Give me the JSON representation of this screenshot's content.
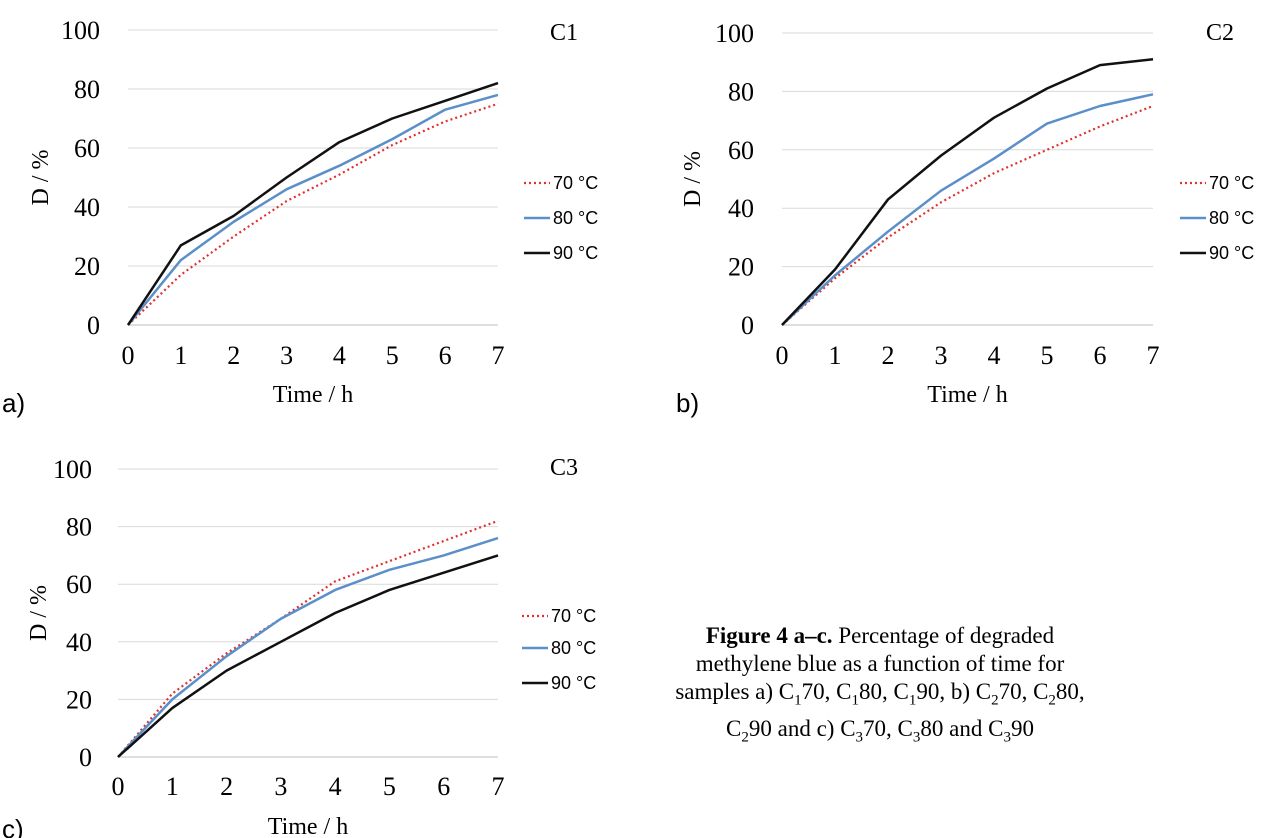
{
  "colors": {
    "s70": "#e03030",
    "s80": "#5b8fc9",
    "s90": "#111111",
    "grid": "#d9d9d9"
  },
  "caption": {
    "bold": "Figure 4 a–c.",
    "text_html": " Percentage of degraded methylene blue as a function of time for samples a) C<sub>1</sub>70, C<sub>1</sub>80, C<sub>1</sub>90, b) C<sub>2</sub>70, C<sub>2</sub>80, C<sub>2</sub>90 and c) C<sub>3</sub>70, C<sub>3</sub>80 and C<sub>3</sub>90"
  },
  "chart_data": [
    {
      "type": "line",
      "panel": "a)",
      "title": "C1",
      "xlabel": "Time / h",
      "ylabel": "D / %",
      "x": [
        0,
        1,
        2,
        3,
        4,
        5,
        6,
        7
      ],
      "xlim": [
        0,
        7
      ],
      "ylim": [
        0,
        100
      ],
      "yticks": [
        0,
        20,
        40,
        60,
        80,
        100
      ],
      "grid": true,
      "legend": "right",
      "series": [
        {
          "name": "70 °C",
          "style": "dotted",
          "values": [
            0,
            17,
            30,
            42,
            51,
            61,
            69,
            75
          ]
        },
        {
          "name": "80 °C",
          "style": "solid-blue",
          "values": [
            0,
            22,
            35,
            46,
            54,
            63,
            73,
            78
          ]
        },
        {
          "name": "90 °C",
          "style": "solid-black",
          "values": [
            0,
            27,
            37,
            50,
            62,
            70,
            76,
            82
          ]
        }
      ]
    },
    {
      "type": "line",
      "panel": "b)",
      "title": "C2",
      "xlabel": "Time  / h",
      "ylabel": "D / %",
      "x": [
        0,
        1,
        2,
        3,
        4,
        5,
        6,
        7
      ],
      "xlim": [
        0,
        7
      ],
      "ylim": [
        0,
        100
      ],
      "yticks": [
        0,
        20,
        40,
        60,
        80,
        100
      ],
      "grid": true,
      "legend": "right",
      "series": [
        {
          "name": "70 °C",
          "style": "dotted",
          "values": [
            0,
            16,
            30,
            42,
            52,
            60,
            68,
            75
          ]
        },
        {
          "name": "80 °C",
          "style": "solid-blue",
          "values": [
            0,
            17,
            32,
            46,
            57,
            69,
            75,
            79
          ]
        },
        {
          "name": "90 °C",
          "style": "solid-black",
          "values": [
            0,
            19,
            43,
            58,
            71,
            81,
            89,
            91
          ]
        }
      ]
    },
    {
      "type": "line",
      "panel": "c)",
      "title": "C3",
      "xlabel": "Time / h",
      "ylabel": "D / %",
      "x": [
        0,
        1,
        2,
        3,
        4,
        5,
        6,
        7
      ],
      "xlim": [
        0,
        7
      ],
      "ylim": [
        0,
        100
      ],
      "yticks": [
        0,
        20,
        40,
        60,
        80,
        100
      ],
      "grid": true,
      "legend": "right",
      "series": [
        {
          "name": "70 °C",
          "style": "dotted",
          "values": [
            0,
            22,
            36,
            48,
            61,
            68,
            75,
            82
          ]
        },
        {
          "name": "80 °C",
          "style": "solid-blue",
          "values": [
            0,
            20,
            35,
            48,
            58,
            65,
            70,
            76
          ]
        },
        {
          "name": "90 °C",
          "style": "solid-black",
          "values": [
            0,
            17,
            30,
            40,
            50,
            58,
            64,
            70
          ]
        }
      ]
    }
  ]
}
